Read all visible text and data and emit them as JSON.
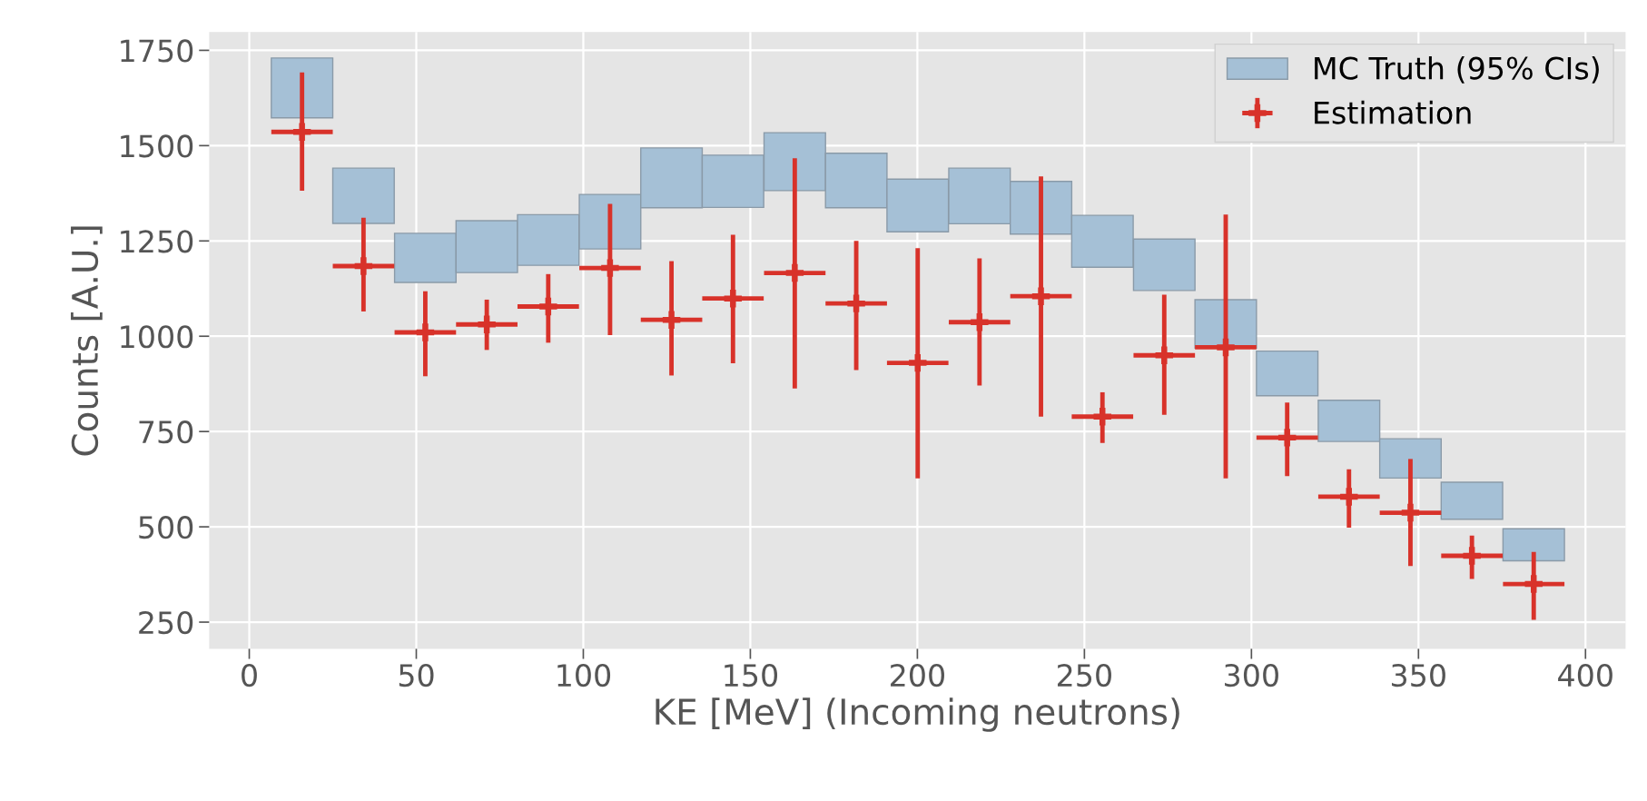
{
  "chart_data": {
    "type": "scatter",
    "xlabel": "KE [MeV] (Incoming neutrons)",
    "ylabel": "Counts [A.U.]",
    "xlim": [
      -12,
      412
    ],
    "xticks": [
      0,
      50,
      100,
      150,
      200,
      250,
      300,
      350,
      400
    ],
    "ylim": [
      180,
      1798
    ],
    "yticks": [
      250,
      500,
      750,
      1000,
      1250,
      1500,
      1750
    ],
    "grid": true,
    "legend": "top right",
    "marker": "cross",
    "series": [
      {
        "name": "MC Truth (95% CIs)",
        "type": "bar",
        "color": "#a5c0d6",
        "x": [
          15.8,
          34.2,
          52.7,
          71.1,
          89.5,
          108.0,
          126.4,
          144.8,
          163.3,
          181.7,
          200.1,
          218.6,
          237.0,
          255.4,
          273.9,
          292.3,
          310.7,
          329.2,
          347.6,
          366.0,
          384.5
        ],
        "base": [
          1573,
          1296,
          1141,
          1167,
          1186,
          1229,
          1337,
          1338,
          1382,
          1337,
          1274,
          1295,
          1268,
          1181,
          1120,
          969,
          844,
          724,
          628,
          520,
          411
        ],
        "values": [
          157,
          145,
          129,
          136,
          133,
          143,
          157,
          137,
          152,
          143,
          138,
          146,
          138,
          136,
          135,
          127,
          117,
          108,
          103,
          97,
          84
        ]
      },
      {
        "name": "Estimation",
        "color": "#d8322a",
        "x": [
          15.8,
          34.2,
          52.7,
          71.1,
          89.5,
          108.0,
          126.4,
          144.8,
          163.3,
          181.7,
          200.1,
          218.6,
          237.0,
          255.4,
          273.9,
          292.3,
          310.7,
          329.2,
          347.6,
          366.0,
          384.5
        ],
        "values": [
          1536,
          1184,
          1010,
          1031,
          1078,
          1179,
          1043,
          1099,
          1166,
          1086,
          930,
          1037,
          1105,
          789,
          950,
          971,
          734,
          579,
          537,
          424,
          350
        ],
        "errors": [
          [
            1382,
            1692
          ],
          [
            1065,
            1311
          ],
          [
            895,
            1118
          ],
          [
            964,
            1096
          ],
          [
            983,
            1163
          ],
          [
            1003,
            1347
          ],
          [
            897,
            1197
          ],
          [
            929,
            1266
          ],
          [
            863,
            1467
          ],
          [
            911,
            1250
          ],
          [
            627,
            1231
          ],
          [
            871,
            1204
          ],
          [
            789,
            1419
          ],
          [
            720,
            853
          ],
          [
            794,
            1109
          ],
          [
            627,
            1319
          ],
          [
            633,
            826
          ],
          [
            498,
            651
          ],
          [
            397,
            678
          ],
          [
            363,
            477
          ],
          [
            256,
            434
          ]
        ],
        "xerrors": [
          9.2,
          9.2,
          9.2,
          9.2,
          9.2,
          9.2,
          9.2,
          9.2,
          9.2,
          9.2,
          9.2,
          9.2,
          9.2,
          9.2,
          9.2,
          9.2,
          9.2,
          9.2,
          9.2,
          9.2,
          9.2
        ]
      }
    ]
  }
}
